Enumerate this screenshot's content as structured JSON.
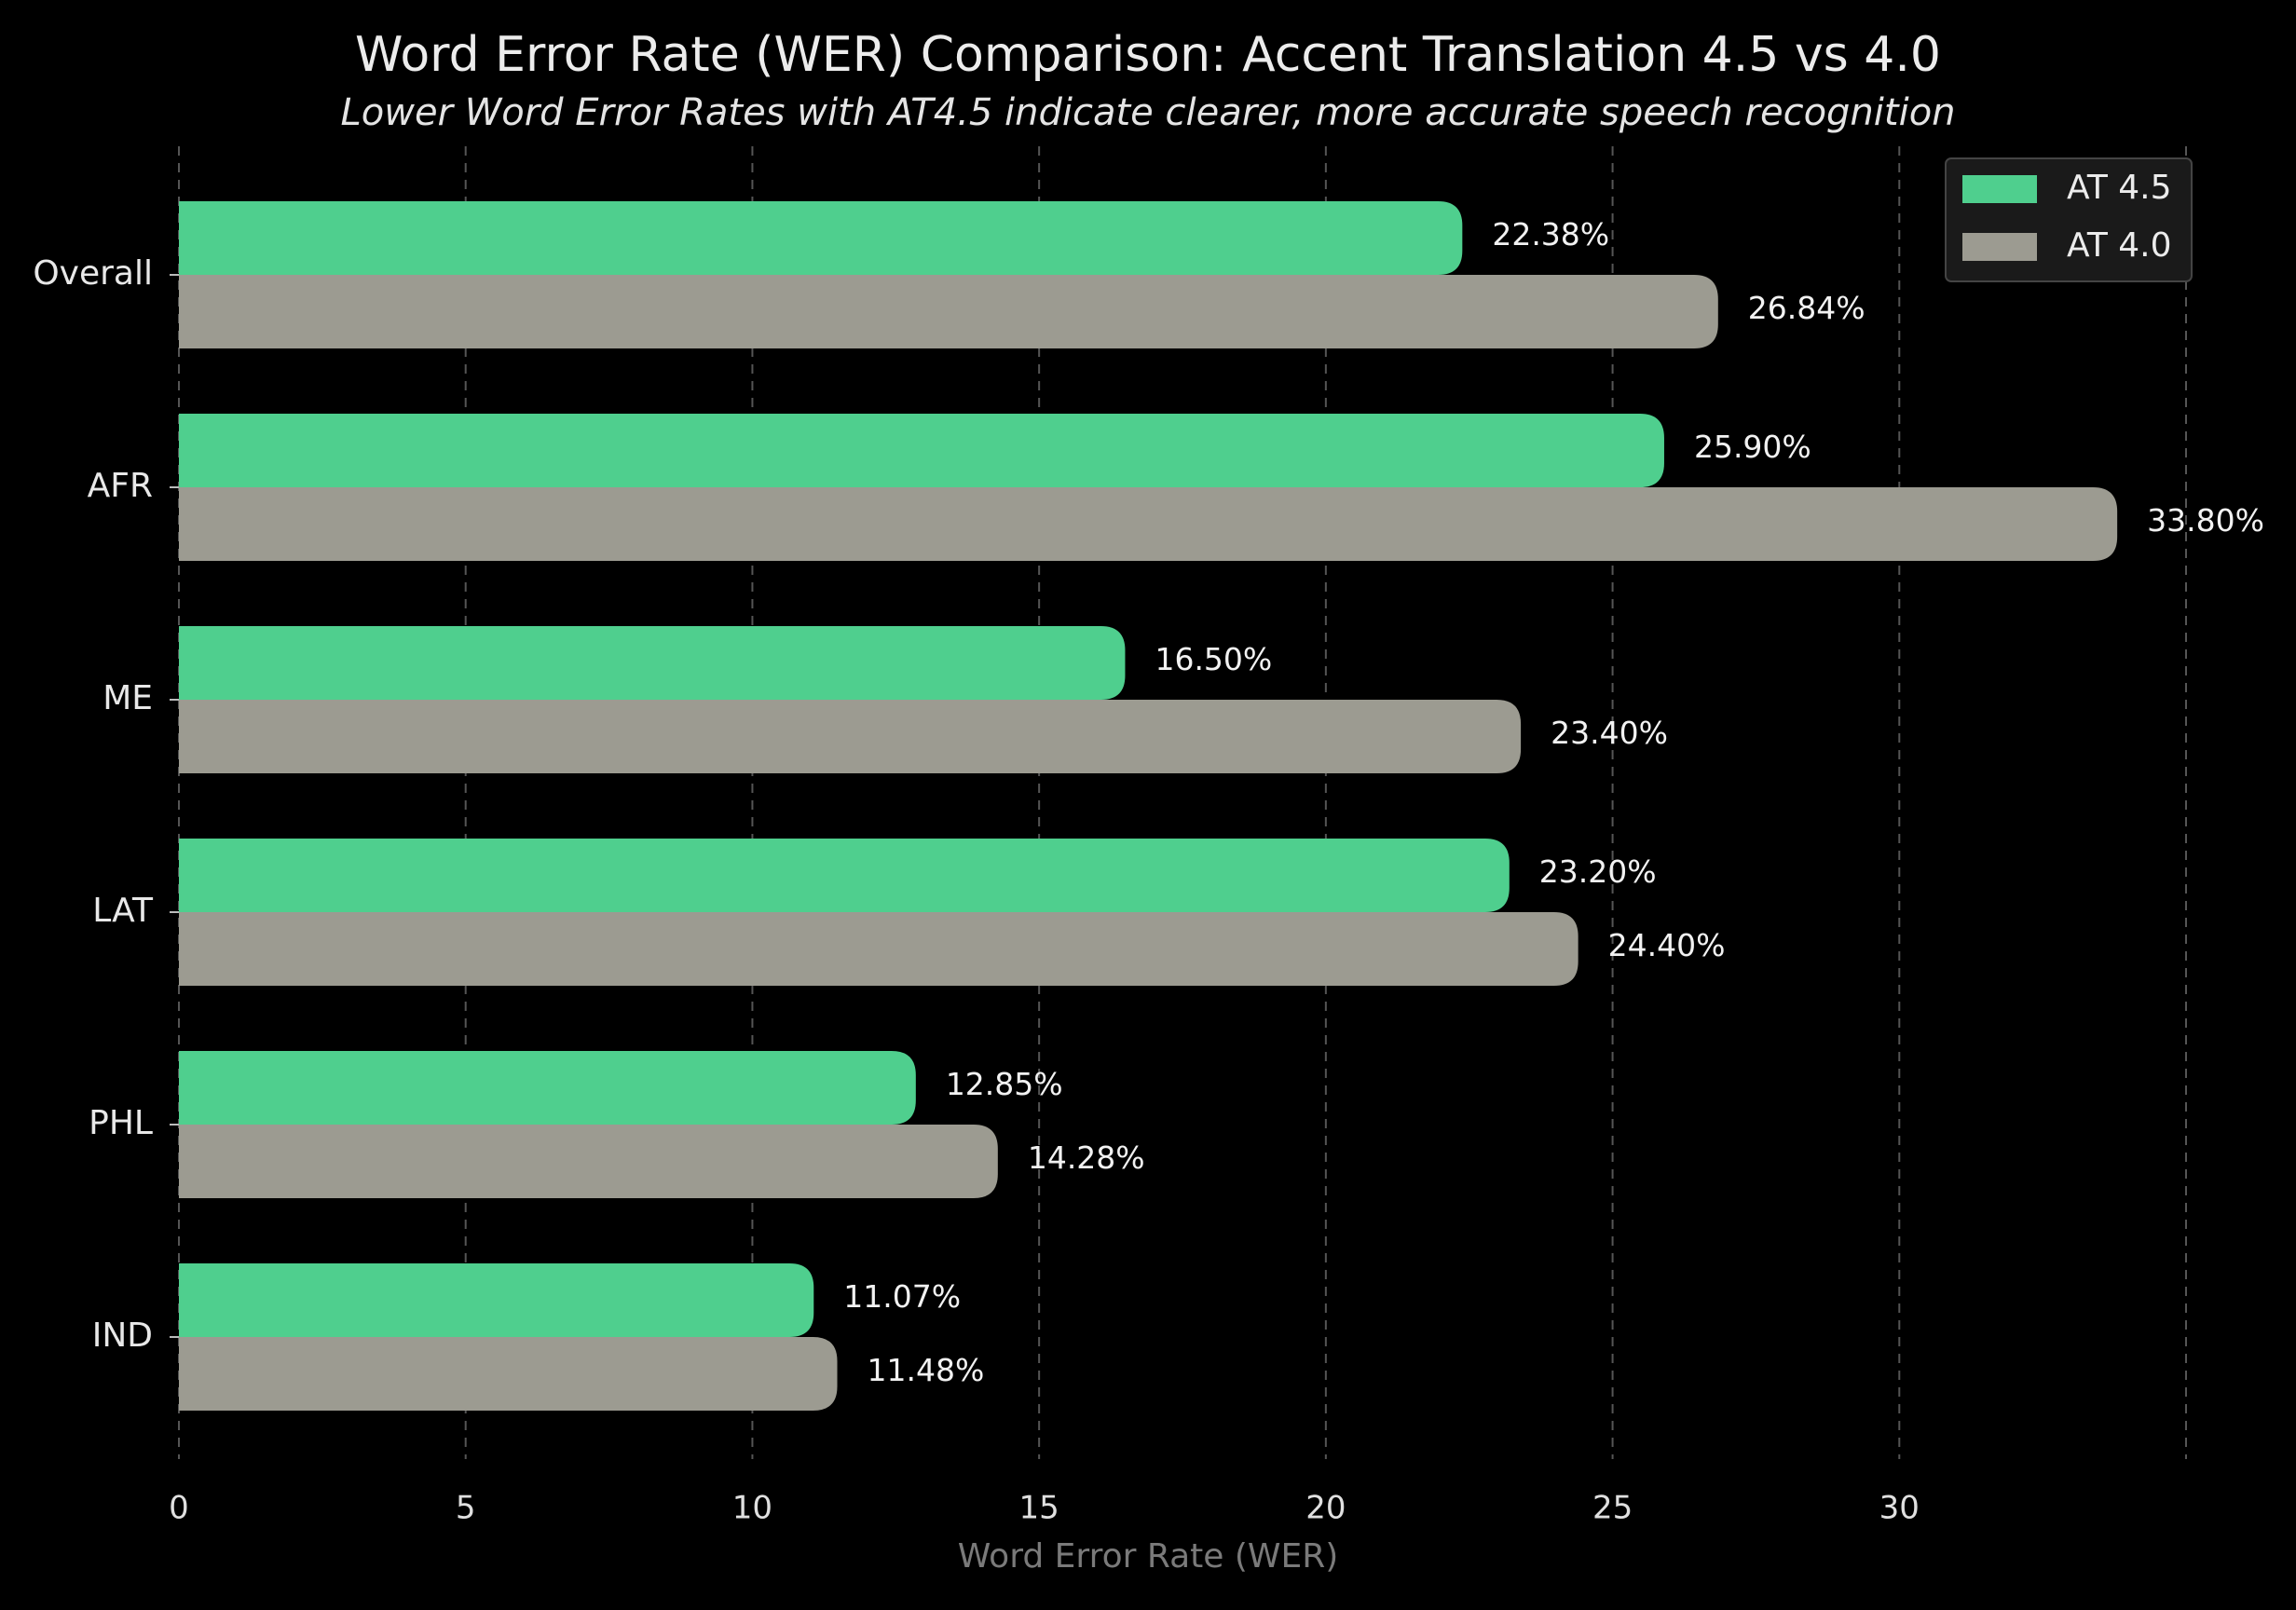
{
  "chart_data": {
    "type": "hbar",
    "title": "Word Error Rate (WER) Comparison: Accent Translation 4.5 vs 4.0",
    "subtitle": "Lower Word Error Rates with AT4.5 indicate clearer, more accurate speech recognition",
    "x_label": "Word Error Rate (WER)",
    "categories": [
      "Overall",
      "AFR",
      "ME",
      "LAT",
      "PHL",
      "IND"
    ],
    "series": [
      {
        "name": "AT 4.5",
        "color": "#4fcf8e",
        "values": [
          22.38,
          25.9,
          16.5,
          23.2,
          12.85,
          11.07
        ],
        "value_labels": [
          "22.38%",
          "25.90%",
          "16.50%",
          "23.20%",
          "12.85%",
          "11.07%"
        ]
      },
      {
        "name": "AT 4.0",
        "color": "#9c9b91",
        "values": [
          26.84,
          33.8,
          23.4,
          24.4,
          14.28,
          11.48
        ],
        "value_labels": [
          "26.84%",
          "33.80%",
          "23.40%",
          "24.40%",
          "14.28%",
          "11.48%"
        ]
      }
    ],
    "xlim": [
      0,
      35
    ],
    "xticks": [
      0,
      5,
      10,
      15,
      20,
      25,
      30
    ],
    "grid": true,
    "legend": "upper right"
  }
}
